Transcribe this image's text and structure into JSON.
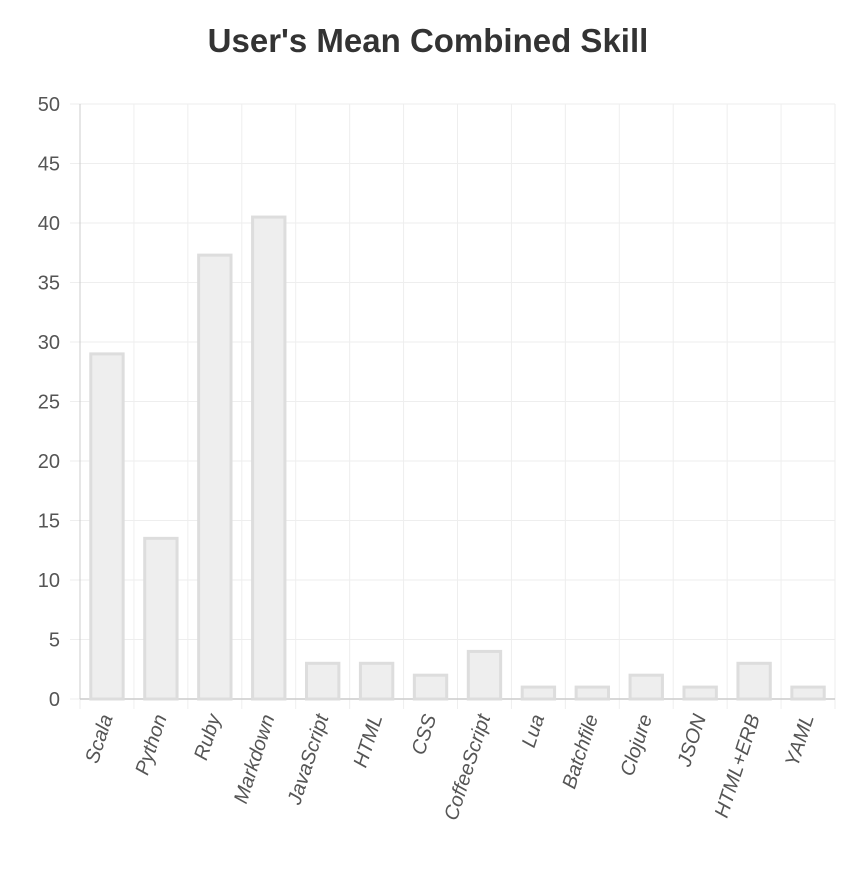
{
  "chart_data": {
    "type": "bar",
    "title": "User's Mean Combined Skill",
    "xlabel": "",
    "ylabel": "",
    "categories": [
      "Scala",
      "Python",
      "Ruby",
      "Markdown",
      "JavaScript",
      "HTML",
      "CSS",
      "CoffeeScript",
      "Lua",
      "Batchfile",
      "Clojure",
      "JSON",
      "HTML+ERB",
      "YAML"
    ],
    "values": [
      29,
      13.5,
      37.3,
      40.5,
      3,
      3,
      2,
      4,
      1,
      1,
      2,
      1,
      3,
      1
    ],
    "ylim": [
      0,
      50
    ],
    "yticks": [
      0,
      5,
      10,
      15,
      20,
      25,
      30,
      35,
      40,
      45,
      50
    ],
    "grid": true,
    "legend": "none",
    "colors": {
      "bar_fill": "#eeeeee",
      "bar_stroke": "#dddddd",
      "grid": "#eeeeee",
      "axis": "#cccccc"
    }
  }
}
